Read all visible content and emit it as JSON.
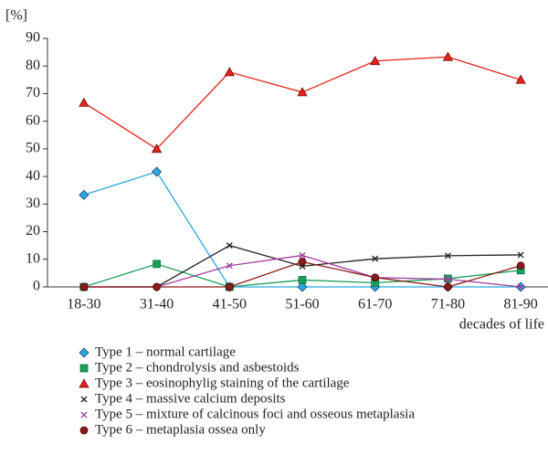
{
  "chart_data": {
    "type": "line",
    "ylabel": "[%]",
    "xlabel": "decades of life",
    "categories": [
      "18-30",
      "31-40",
      "41-50",
      "51-60",
      "61-70",
      "71-80",
      "81-90"
    ],
    "ylim": [
      0,
      90
    ],
    "yticks": [
      0,
      10,
      20,
      30,
      40,
      50,
      60,
      70,
      80,
      90
    ],
    "grid": false,
    "series": [
      {
        "name": "Type 1 – normal cartilage",
        "color": "#29a9e0",
        "marker": "diamond",
        "values": [
          33.3,
          41.7,
          0,
          0,
          0,
          0,
          0
        ]
      },
      {
        "name": "Type 2 – chondrolysis and asbestoids",
        "color": "#1a9e5a",
        "marker": "square",
        "values": [
          0,
          8.3,
          0,
          2.5,
          1.5,
          3,
          6
        ]
      },
      {
        "name": "Type 3 – eosinophylig staining of the cartilage",
        "color": "#e2231a",
        "marker": "triangle",
        "values": [
          66.7,
          50,
          77.8,
          70.5,
          81.8,
          83.3,
          75
        ]
      },
      {
        "name": "Type 4 – massive calcium deposits",
        "color": "#222222",
        "marker": "x",
        "values": [
          0,
          0,
          15,
          7.5,
          10.2,
          11.3,
          11.6
        ]
      },
      {
        "name": "Type 5 – mixture of calcinous foci and osseous metaplasia",
        "color": "#a23ca0",
        "marker": "x",
        "values": [
          0,
          0,
          7.7,
          11.4,
          3.4,
          2.8,
          0
        ]
      },
      {
        "name": "Type 6 – metaplasia ossea only",
        "color": "#8b1a1a",
        "marker": "circle",
        "values": [
          0,
          0,
          0,
          9.1,
          3.4,
          0,
          7.7
        ]
      }
    ]
  }
}
